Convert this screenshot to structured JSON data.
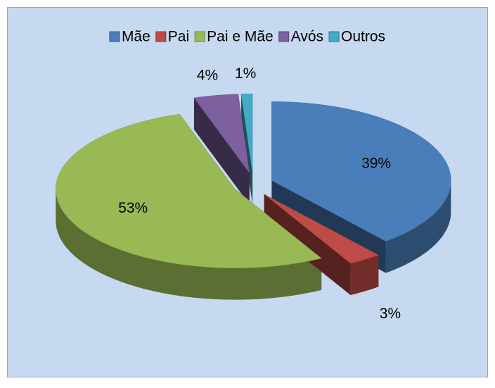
{
  "chart_data": {
    "type": "pie",
    "categories": [
      "Mãe",
      "Pai",
      "Pai e Mãe",
      "Avós",
      "Outros"
    ],
    "values": [
      39,
      3,
      53,
      4,
      1
    ],
    "value_labels": [
      "39%",
      "3%",
      "53%",
      "4%",
      "1%"
    ],
    "colors": [
      "#4a7ebb",
      "#be4b48",
      "#98b954",
      "#7d60a0",
      "#46aac5"
    ],
    "legend": "top"
  }
}
